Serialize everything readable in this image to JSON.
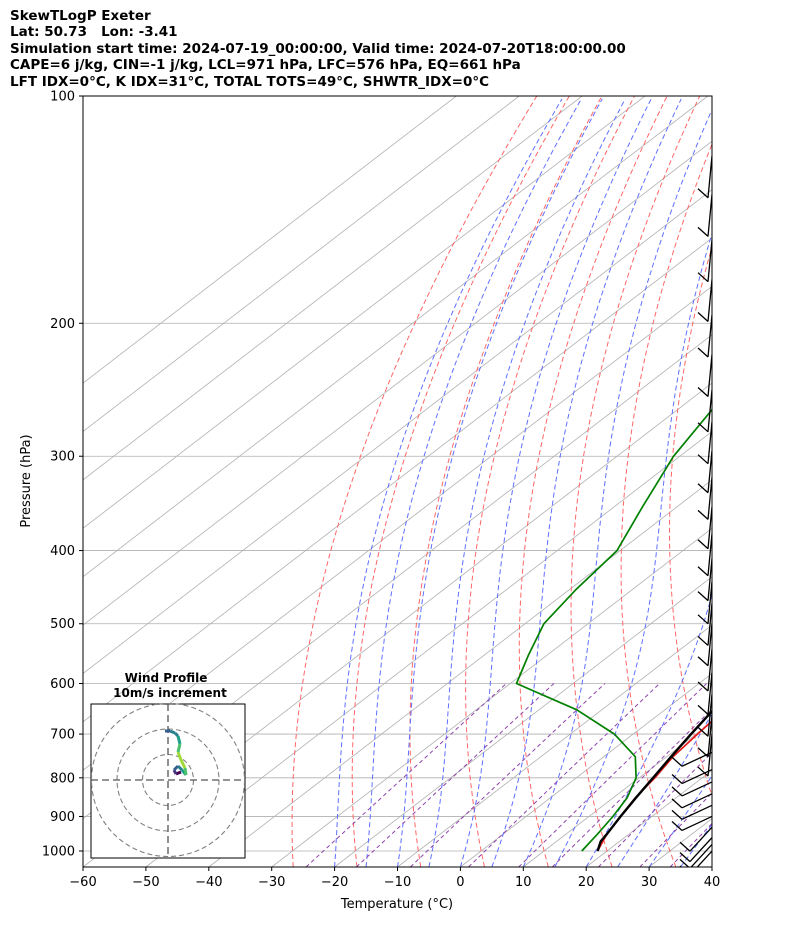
{
  "header": {
    "line1": "SkewTLogP Exeter",
    "line2": "Lat: 50.73   Lon: -3.41",
    "line3": "Simulation start time: 2024-07-19_00:00:00, Valid time: 2024-07-20T18:00:00.00",
    "line4": "CAPE=6 j/kg, CIN=-1 j/kg, LCL=971 hPa, LFC=576 hPa, EQ=661 hPa",
    "line5": "LFT IDX=0°C, K IDX=31°C, TOTAL TOTS=49°C, SHWTR_IDX=0°C"
  },
  "chart_data": {
    "type": "line",
    "xlabel": "Temperature (°C)",
    "ylabel": "Pressure (hPa)",
    "xlim": [
      -60,
      40
    ],
    "ylim": [
      1050,
      100
    ],
    "y_scale": "log",
    "grid": true,
    "x_ticks": [
      -60,
      -50,
      -40,
      -30,
      -20,
      -10,
      0,
      10,
      20,
      30,
      40
    ],
    "y_ticks": [
      1000,
      900,
      800,
      700,
      600,
      500,
      400,
      300,
      200,
      100
    ],
    "series": [
      {
        "color": "#e41a1a",
        "points": [
          [
            1000,
            18.5
          ],
          [
            950,
            16.5
          ],
          [
            900,
            15
          ],
          [
            850,
            13.5
          ],
          [
            800,
            12.5
          ],
          [
            750,
            11
          ],
          [
            700,
            10.2
          ],
          [
            650,
            9.5
          ],
          [
            600,
            7.5
          ],
          [
            550,
            3.8
          ],
          [
            500,
            -1.5
          ],
          [
            450,
            -6
          ],
          [
            400,
            -12
          ],
          [
            350,
            -19.5
          ],
          [
            300,
            -28
          ],
          [
            270,
            -33
          ],
          [
            250,
            -36.5
          ],
          [
            225,
            -39.5
          ],
          [
            200,
            -41.5
          ],
          [
            180,
            -45
          ],
          [
            160,
            -50
          ],
          [
            140,
            -54
          ],
          [
            120,
            -58
          ],
          [
            100,
            -63
          ]
        ]
      },
      {
        "color": "#008000",
        "points": [
          [
            1000,
            16
          ],
          [
            950,
            15
          ],
          [
            900,
            13.8
          ],
          [
            850,
            12.2
          ],
          [
            800,
            9.5
          ],
          [
            750,
            5
          ],
          [
            700,
            -3
          ],
          [
            650,
            -14
          ],
          [
            600,
            -29
          ],
          [
            550,
            -33
          ],
          [
            500,
            -37
          ],
          [
            450,
            -39
          ],
          [
            400,
            -40.5
          ],
          [
            350,
            -45.5
          ],
          [
            300,
            -51
          ],
          [
            250,
            -55.5
          ],
          [
            220,
            -61
          ],
          [
            200,
            -66
          ],
          [
            180,
            -70
          ],
          [
            160,
            -72.5
          ],
          [
            140,
            -76
          ],
          [
            120,
            -80
          ],
          [
            100,
            -84
          ]
        ]
      },
      {
        "color": "#000000",
        "points": [
          [
            1000,
            18.5
          ],
          [
            971,
            17
          ],
          [
            950,
            16.5
          ],
          [
            900,
            15
          ],
          [
            850,
            13.6
          ],
          [
            800,
            12.2
          ],
          [
            750,
            10.7
          ],
          [
            700,
            9.2
          ],
          [
            650,
            7.7
          ],
          [
            600,
            5.5
          ],
          [
            550,
            2.8
          ],
          [
            500,
            -0.3
          ],
          [
            450,
            -4
          ],
          [
            400,
            -8.5
          ],
          [
            350,
            -14
          ],
          [
            300,
            -21
          ],
          [
            250,
            -30
          ],
          [
            200,
            -41
          ],
          [
            150,
            -55
          ],
          [
            100,
            -75
          ]
        ]
      }
    ],
    "cape_fill": {
      "color": "#a3c6df"
    },
    "wind_barbs": {
      "color": "#000000"
    },
    "inset": {
      "title": "Wind Profile",
      "subtitle": "10m/s increment",
      "rings": 3
    }
  }
}
